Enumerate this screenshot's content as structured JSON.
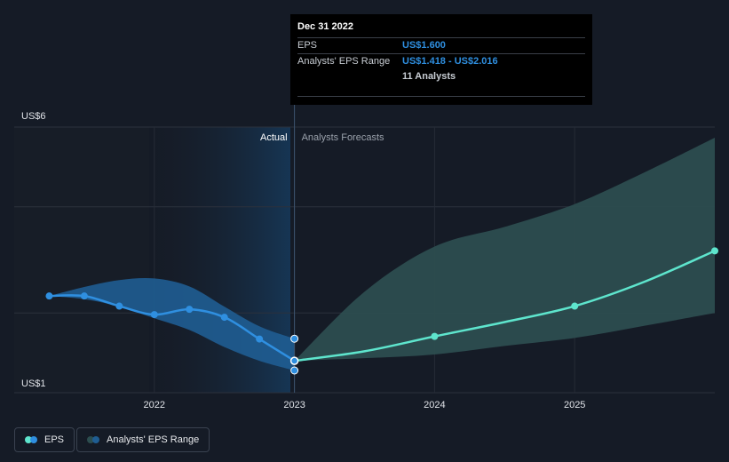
{
  "chart_data": {
    "type": "line",
    "y_ticks": [
      {
        "label": "US$6",
        "value": 6
      },
      {
        "label": "US$1",
        "value": 1
      }
    ],
    "ylim": [
      1,
      6
    ],
    "x_ticks": [
      {
        "label": "2022",
        "value": 2022.0
      },
      {
        "label": "2023",
        "value": 2023.0
      },
      {
        "label": "2024",
        "value": 2024.0
      },
      {
        "label": "2025",
        "value": 2025.0
      }
    ],
    "region_labels": {
      "actual": "Actual",
      "forecast": "Analysts Forecasts"
    },
    "divider_x": 2023.0,
    "series": [
      {
        "name": "EPS",
        "color": "#2f8fe0",
        "points": [
          [
            2021.25,
            2.82
          ],
          [
            2021.5,
            2.82
          ],
          [
            2021.75,
            2.63
          ],
          [
            2022.0,
            2.47
          ],
          [
            2022.25,
            2.57
          ],
          [
            2022.5,
            2.42
          ],
          [
            2022.75,
            2.01
          ],
          [
            2023.0,
            1.6
          ]
        ]
      },
      {
        "name": "EPS forecast",
        "color": "#5ee5cd",
        "points": [
          [
            2023.0,
            1.6
          ],
          [
            2023.5,
            1.78
          ],
          [
            2024.0,
            2.06
          ],
          [
            2024.5,
            2.33
          ],
          [
            2025.0,
            2.63
          ],
          [
            2025.5,
            3.09
          ],
          [
            2026.0,
            3.67
          ]
        ]
      }
    ],
    "range_actual": {
      "color": "#1f5d92",
      "upper": [
        [
          2021.25,
          2.82
        ],
        [
          2021.5,
          2.99
        ],
        [
          2021.75,
          3.12
        ],
        [
          2022.0,
          3.15
        ],
        [
          2022.25,
          3.0
        ],
        [
          2022.5,
          2.62
        ],
        [
          2022.75,
          2.25
        ],
        [
          2023.0,
          2.016
        ]
      ],
      "lower": [
        [
          2021.25,
          2.82
        ],
        [
          2021.5,
          2.76
        ],
        [
          2021.75,
          2.62
        ],
        [
          2022.0,
          2.4
        ],
        [
          2022.25,
          2.18
        ],
        [
          2022.5,
          1.86
        ],
        [
          2022.75,
          1.6
        ],
        [
          2023.0,
          1.418
        ]
      ]
    },
    "range_forecast": {
      "color": "#2c4d4f",
      "upper": [
        [
          2023.0,
          1.6
        ],
        [
          2023.5,
          2.9
        ],
        [
          2024.0,
          3.75
        ],
        [
          2024.5,
          4.12
        ],
        [
          2025.0,
          4.55
        ],
        [
          2025.5,
          5.15
        ],
        [
          2026.0,
          5.8
        ]
      ],
      "lower": [
        [
          2023.0,
          1.6
        ],
        [
          2023.5,
          1.65
        ],
        [
          2024.0,
          1.72
        ],
        [
          2024.5,
          1.88
        ],
        [
          2025.0,
          2.03
        ],
        [
          2025.5,
          2.26
        ],
        [
          2026.0,
          2.5
        ]
      ]
    },
    "range_endpoints": [
      [
        2023.0,
        2.016
      ],
      [
        2023.0,
        1.418
      ]
    ]
  },
  "tooltip": {
    "date": "Dec 31 2022",
    "eps_label": "EPS",
    "eps_value": "US$1.600",
    "range_label": "Analysts' EPS Range",
    "range_value": "US$1.418 - US$2.016",
    "analysts": "11 Analysts"
  },
  "legend": {
    "eps": {
      "label": "EPS",
      "colors": [
        "#5ee5cd",
        "#2f8fe0"
      ]
    },
    "range": {
      "label": "Analysts' EPS Range",
      "colors": [
        "#2c4d4f",
        "#1f5d92"
      ]
    }
  }
}
